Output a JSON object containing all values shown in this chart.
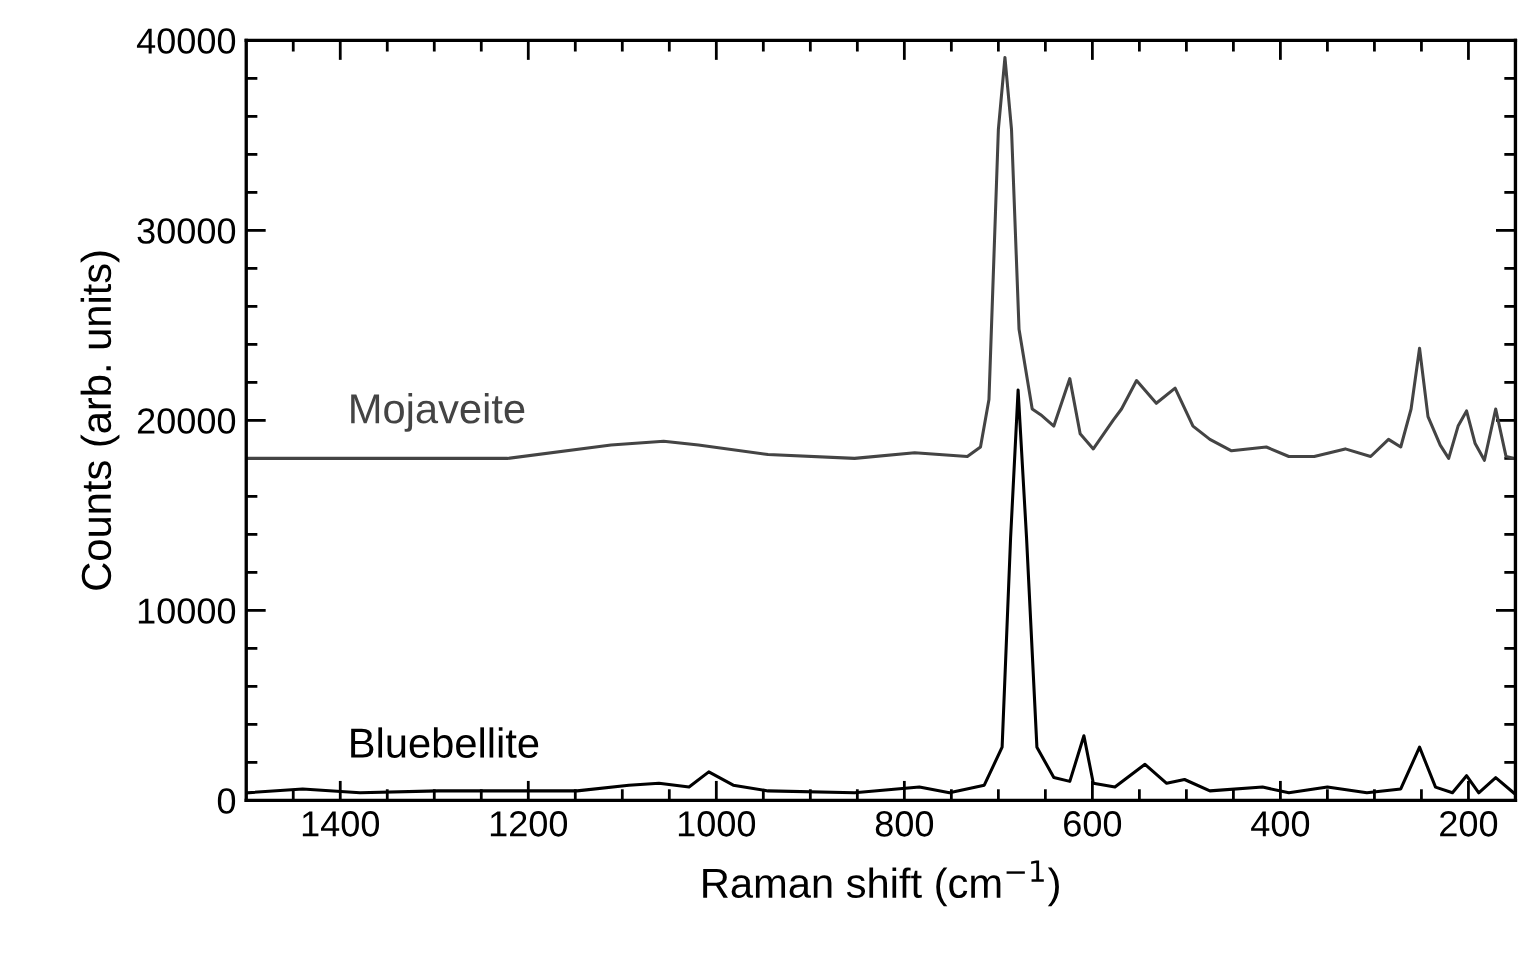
{
  "chart_data": {
    "type": "line",
    "xlabel": "Raman shift (cm$^{−1}$)",
    "ylabel": "Counts (arb. units)",
    "xlim": [
      1500,
      150
    ],
    "ylim": [
      0,
      40000
    ],
    "xticks": [
      {
        "value": 1450,
        "label": null
      },
      1400,
      {
        "value": 1350,
        "label": null
      },
      {
        "value": 1300,
        "label": null
      },
      {
        "value": 1250,
        "label": null
      },
      1200,
      {
        "value": 1150,
        "label": null
      },
      {
        "value": 1100,
        "label": null
      },
      {
        "value": 1050,
        "label": null
      },
      1000,
      {
        "value": 950,
        "label": null
      },
      {
        "value": 900,
        "label": null
      },
      {
        "value": 850,
        "label": null
      },
      800,
      {
        "value": 750,
        "label": null
      },
      {
        "value": 700,
        "label": null
      },
      {
        "value": 650,
        "label": null
      },
      600,
      {
        "value": 550,
        "label": null
      },
      {
        "value": 500,
        "label": null
      },
      {
        "value": 450,
        "label": null
      },
      400,
      {
        "value": 350,
        "label": null
      },
      {
        "value": 300,
        "label": null
      },
      {
        "value": 250,
        "label": null
      },
      200
    ],
    "yticks": [
      0,
      {
        "value": 2000,
        "label": null
      },
      {
        "value": 4000,
        "label": null
      },
      {
        "value": 6000,
        "label": null
      },
      {
        "value": 8000,
        "label": null
      },
      10000,
      {
        "value": 12000,
        "label": null
      },
      {
        "value": 14000,
        "label": null
      },
      {
        "value": 16000,
        "label": null
      },
      {
        "value": 18000,
        "label": null
      },
      20000,
      {
        "value": 22000,
        "label": null
      },
      {
        "value": 24000,
        "label": null
      },
      {
        "value": 26000,
        "label": null
      },
      {
        "value": 28000,
        "label": null
      },
      30000,
      {
        "value": 32000,
        "label": null
      },
      {
        "value": 34000,
        "label": null
      },
      {
        "value": 36000,
        "label": null
      },
      {
        "value": 38000,
        "label": null
      },
      40000
    ],
    "grid": false,
    "legend": false,
    "marker": "none",
    "line_style": "solid",
    "series": [
      {
        "name": "Mojaveite",
        "color": "#444444",
        "x": [
          1499,
          1222,
          1112,
          1056,
          1019,
          945,
          853,
          789,
          733,
          719,
          710,
          700,
          693,
          686,
          678,
          664,
          655,
          641,
          624,
          613,
          599,
          578,
          569,
          553,
          532,
          512,
          493,
          475,
          452,
          415,
          391,
          364,
          331,
          304,
          285,
          272,
          261,
          252,
          243,
          230,
          221,
          211,
          202,
          193,
          183,
          171,
          160,
          151
        ],
        "values": [
          18000,
          18000,
          18700,
          18900,
          18700,
          18200,
          18000,
          18300,
          18100,
          18600,
          21100,
          35300,
          39100,
          35300,
          24800,
          20600,
          20300,
          19700,
          22200,
          19300,
          18500,
          20000,
          20600,
          22100,
          20900,
          21700,
          19700,
          19000,
          18400,
          18600,
          18100,
          18100,
          18500,
          18100,
          19000,
          18600,
          20600,
          23800,
          20200,
          18700,
          18000,
          19700,
          20500,
          18800,
          17900,
          20600,
          18100,
          18000
        ]
      },
      {
        "name": "Bluebellite",
        "color": "#000000",
        "x": [
          1499,
          1440,
          1379,
          1296,
          1148,
          1093,
          1061,
          1029,
          1008,
          982,
          945,
          853,
          784,
          752,
          715,
          696,
          687,
          679,
          670,
          659,
          641,
          624,
          609,
          599,
          576,
          544,
          521,
          502,
          475,
          419,
          391,
          350,
          308,
          272,
          252,
          235,
          217,
          202,
          189,
          171,
          152
        ],
        "values": [
          400,
          600,
          400,
          500,
          500,
          800,
          900,
          700,
          1500,
          800,
          500,
          400,
          700,
          400,
          800,
          2800,
          13800,
          21600,
          13800,
          2800,
          1200,
          1000,
          3400,
          900,
          700,
          1900,
          900,
          1100,
          500,
          700,
          400,
          700,
          400,
          600,
          2800,
          700,
          400,
          1300,
          400,
          1200,
          400
        ]
      }
    ]
  }
}
